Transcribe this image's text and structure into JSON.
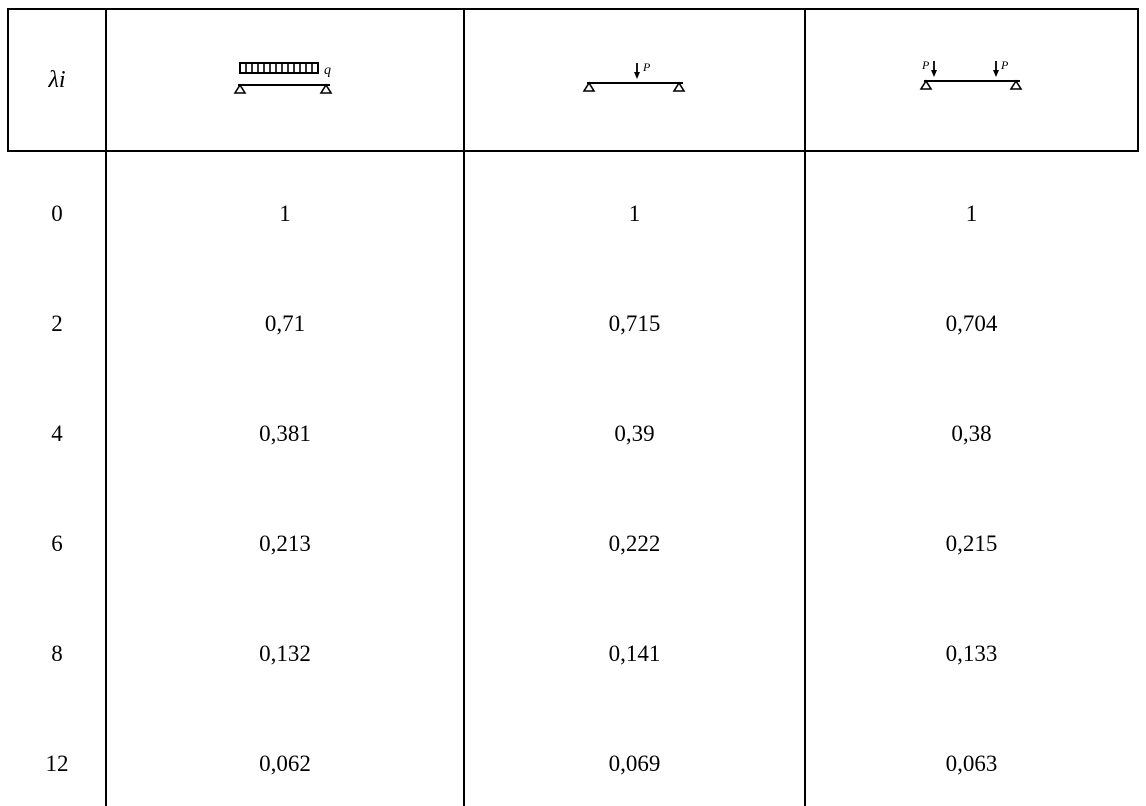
{
  "table": {
    "header": {
      "lambda_label": "λi",
      "load_case_icons": [
        "uniform-load-beam-icon",
        "central-point-load-beam-icon",
        "two-point-load-beam-icon"
      ],
      "icon_letters": {
        "uniform": "q",
        "point": "P"
      }
    },
    "rows": [
      {
        "lambda": "0",
        "values": [
          "1",
          "1",
          "1"
        ]
      },
      {
        "lambda": "2",
        "values": [
          "0,71",
          "0,715",
          "0,704"
        ]
      },
      {
        "lambda": "4",
        "values": [
          "0,381",
          "0,39",
          "0,38"
        ]
      },
      {
        "lambda": "6",
        "values": [
          "0,213",
          "0,222",
          "0,215"
        ]
      },
      {
        "lambda": "8",
        "values": [
          "0,132",
          "0,141",
          "0,133"
        ]
      },
      {
        "lambda": "12",
        "values": [
          "0,062",
          "0,069",
          "0,063"
        ]
      }
    ]
  }
}
